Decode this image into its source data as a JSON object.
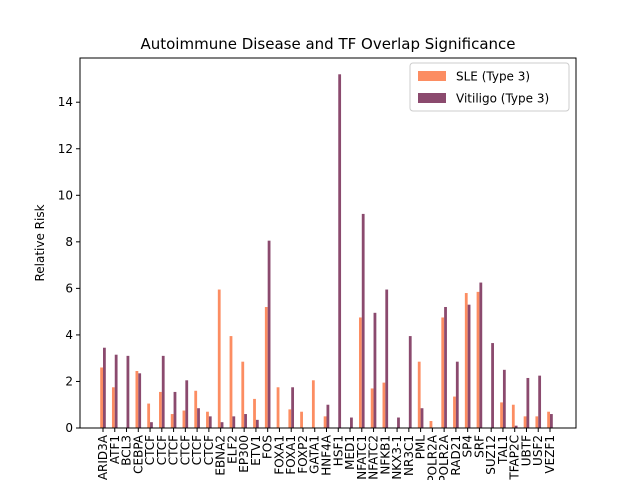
{
  "chart_data": {
    "type": "bar",
    "title": "Autoimmune Disease and TF Overlap Significance",
    "xlabel": "",
    "ylabel": "Relative Risk",
    "ylim": [
      0,
      15.9
    ],
    "yticks": [
      0,
      2,
      4,
      6,
      8,
      10,
      12,
      14
    ],
    "legend_position": "top-right",
    "categories": [
      "ARID3A",
      "ATF1",
      "BCL3",
      "CEBPA",
      "CTCF",
      "CTCF",
      "CTCF",
      "CTCF",
      "CTCF",
      "CTCF",
      "EBNA2",
      "ELF2",
      "EP300",
      "ETV1",
      "FOS",
      "FOXA1",
      "FOXA1",
      "FOXP2",
      "GATA1",
      "HNF4A",
      "HSF1",
      "MED1",
      "NFATC1",
      "NFATC2",
      "NFKB1",
      "NKX3-1",
      "NR3C1",
      "PML",
      "POLR2A",
      "POLR2A",
      "RAD21",
      "SP4",
      "SRF",
      "SUZ12",
      "TAL1",
      "TFAP2C",
      "UBTF",
      "USF2",
      "VEZF1"
    ],
    "series": [
      {
        "name": "SLE (Type 3)",
        "color": "#fc8d62",
        "values": [
          2.6,
          1.75,
          0,
          2.45,
          1.05,
          1.55,
          0.6,
          0.75,
          1.6,
          0.7,
          5.95,
          3.95,
          2.85,
          1.25,
          5.2,
          1.75,
          0.8,
          0.7,
          2.05,
          0.5,
          0,
          0,
          4.75,
          1.7,
          1.95,
          0,
          0,
          2.85,
          0.3,
          4.75,
          1.35,
          5.8,
          5.85,
          0,
          1.1,
          1.0,
          0.5,
          0.5,
          0.7
        ]
      },
      {
        "name": "Vitiligo (Type 3)",
        "color": "#8b4a6e",
        "values": [
          3.45,
          3.15,
          3.1,
          2.35,
          0.25,
          3.1,
          1.55,
          2.05,
          0.85,
          0.5,
          0.25,
          0.5,
          0.6,
          0.35,
          8.05,
          0,
          1.75,
          0,
          0,
          1.0,
          15.2,
          0.45,
          9.2,
          4.95,
          5.95,
          0.45,
          3.95,
          0.85,
          0,
          5.2,
          2.85,
          5.3,
          6.25,
          3.65,
          2.5,
          0.1,
          2.15,
          2.25,
          0.6
        ]
      }
    ]
  }
}
